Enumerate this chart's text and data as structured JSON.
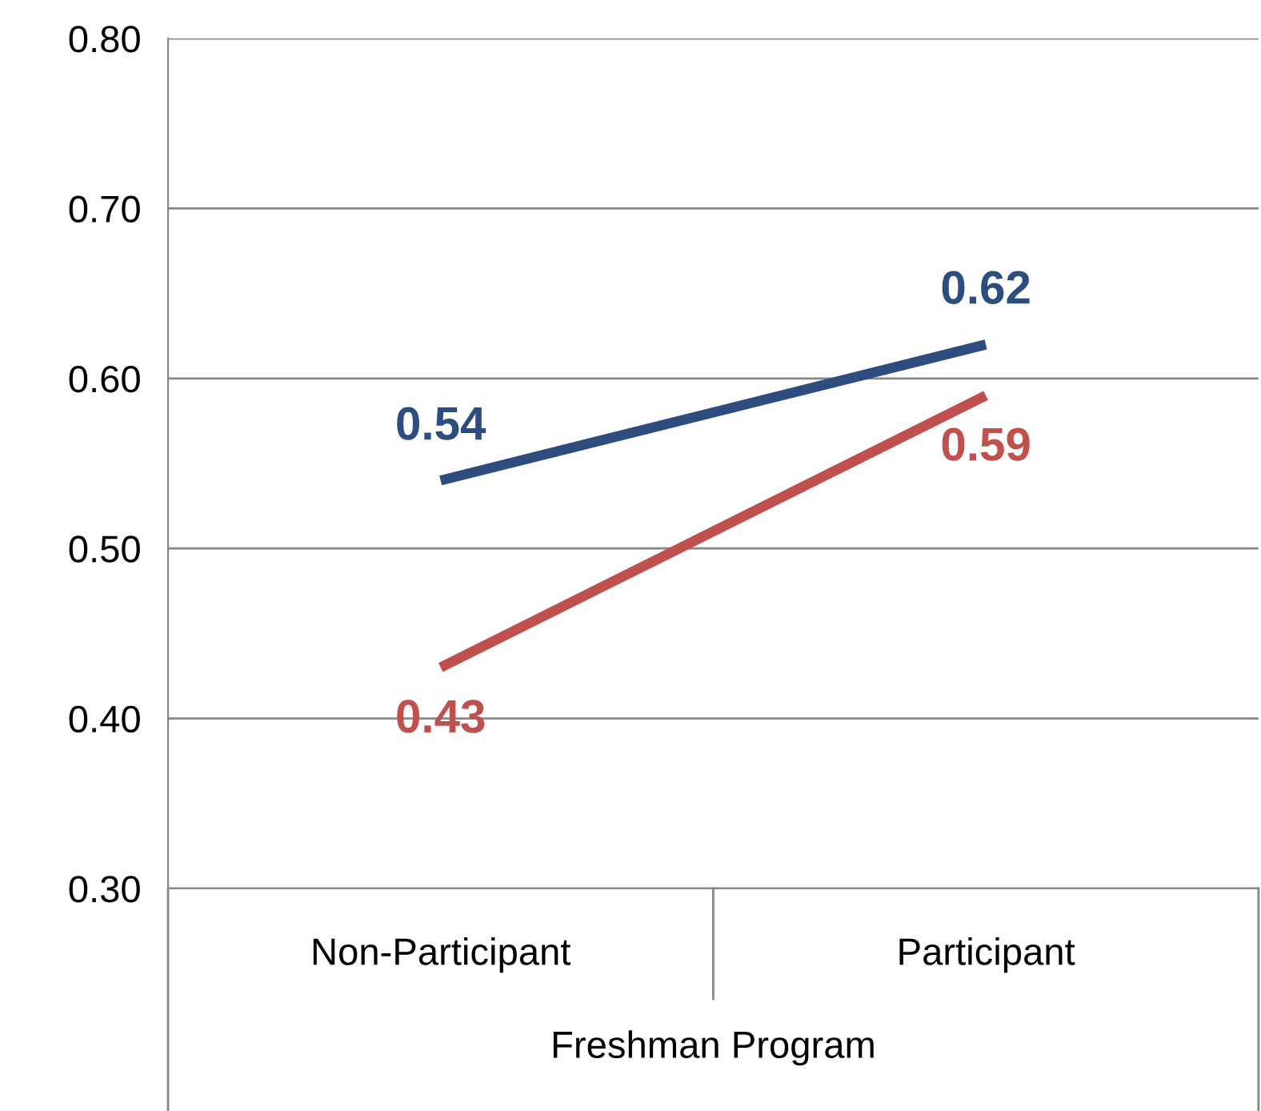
{
  "chart_data": {
    "type": "line",
    "xlabel": "Freshman Program",
    "categories": [
      "Non-Participant",
      "Participant"
    ],
    "series": [
      {
        "color": "#2c4d7e",
        "values": [
          0.54,
          0.62
        ]
      },
      {
        "color": "#c0504d",
        "values": [
          0.43,
          0.59
        ]
      }
    ],
    "ylim": [
      0.3,
      0.8
    ],
    "yticks": [
      {
        "value": 0.3,
        "label": "0.30"
      },
      {
        "value": 0.4,
        "label": "0.40"
      },
      {
        "value": 0.5,
        "label": "0.50"
      },
      {
        "value": 0.6,
        "label": "0.60"
      },
      {
        "value": 0.7,
        "label": "0.70"
      },
      {
        "value": 0.8,
        "label": "0.80"
      }
    ],
    "grid": "y",
    "data_labels": true,
    "marker": "none",
    "line_style": "solid",
    "legend": false
  }
}
